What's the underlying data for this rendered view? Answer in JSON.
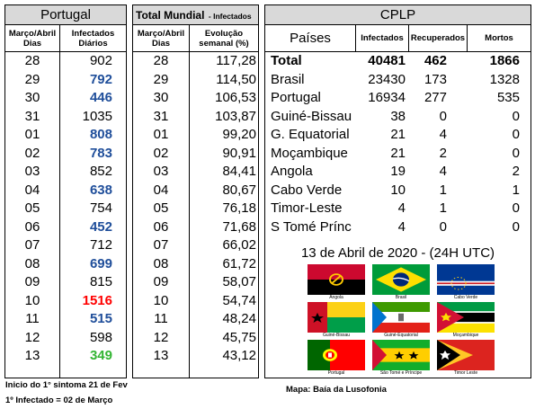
{
  "portugal": {
    "title": "Portugal",
    "col_date": "Março/Abril Dias",
    "col_value": "Infectados Diários",
    "rows": [
      {
        "day": "28",
        "value": "902",
        "style": "normal"
      },
      {
        "day": "29",
        "value": "792",
        "style": "blue"
      },
      {
        "day": "30",
        "value": "446",
        "style": "blue"
      },
      {
        "day": "31",
        "value": "1035",
        "style": "normal"
      },
      {
        "day": "01",
        "value": "808",
        "style": "blue"
      },
      {
        "day": "02",
        "value": "783",
        "style": "blue"
      },
      {
        "day": "03",
        "value": "852",
        "style": "normal"
      },
      {
        "day": "04",
        "value": "638",
        "style": "blue"
      },
      {
        "day": "05",
        "value": "754",
        "style": "normal"
      },
      {
        "day": "06",
        "value": "452",
        "style": "blue"
      },
      {
        "day": "07",
        "value": "712",
        "style": "normal"
      },
      {
        "day": "08",
        "value": "699",
        "style": "blue"
      },
      {
        "day": "09",
        "value": "815",
        "style": "normal"
      },
      {
        "day": "10",
        "value": "1516",
        "style": "red"
      },
      {
        "day": "11",
        "value": "515",
        "style": "blue"
      },
      {
        "day": "12",
        "value": "598",
        "style": "normal"
      },
      {
        "day": "13",
        "value": "349",
        "style": "green"
      }
    ],
    "notes": [
      "Inicio do 1° sintoma 21 de Fev",
      "1º Infectado = 02 de Março"
    ]
  },
  "mundial": {
    "title": "Total Mundial",
    "title_suffix": "- Infectados",
    "col_date": "Março/Abril Dias",
    "col_value": "Evolução semanal (%)",
    "rows": [
      {
        "day": "28",
        "value": "117,28"
      },
      {
        "day": "29",
        "value": "114,50"
      },
      {
        "day": "30",
        "value": "106,53"
      },
      {
        "day": "31",
        "value": "103,87"
      },
      {
        "day": "01",
        "value": "99,20"
      },
      {
        "day": "02",
        "value": "90,91"
      },
      {
        "day": "03",
        "value": "84,41"
      },
      {
        "day": "04",
        "value": "80,67"
      },
      {
        "day": "05",
        "value": "76,18"
      },
      {
        "day": "06",
        "value": "71,68"
      },
      {
        "day": "07",
        "value": "66,02"
      },
      {
        "day": "08",
        "value": "61,72"
      },
      {
        "day": "09",
        "value": "58,07"
      },
      {
        "day": "10",
        "value": "54,74"
      },
      {
        "day": "11",
        "value": "48,24"
      },
      {
        "day": "12",
        "value": "45,75"
      },
      {
        "day": "13",
        "value": "43,12"
      }
    ]
  },
  "cplp": {
    "title": "CPLP",
    "col_country": "Países",
    "col_infected": "Infectados",
    "col_recovered": "Recuperados",
    "col_deaths": "Mortos",
    "rows": [
      {
        "country": "Total",
        "infected": "40481",
        "recovered": "462",
        "deaths": "1866",
        "bold": true
      },
      {
        "country": "Brasil",
        "infected": "23430",
        "recovered": "173",
        "deaths": "1328",
        "bold": false
      },
      {
        "country": "Portugal",
        "infected": "16934",
        "recovered": "277",
        "deaths": "535",
        "bold": false
      },
      {
        "country": "Guiné-Bissau",
        "infected": "38",
        "recovered": "0",
        "deaths": "0",
        "bold": false
      },
      {
        "country": "G. Equatorial",
        "infected": "21",
        "recovered": "4",
        "deaths": "0",
        "bold": false
      },
      {
        "country": "Moçambique",
        "infected": "21",
        "recovered": "2",
        "deaths": "0",
        "bold": false
      },
      {
        "country": "Angola",
        "infected": "19",
        "recovered": "4",
        "deaths": "2",
        "bold": false
      },
      {
        "country": "Cabo Verde",
        "infected": "10",
        "recovered": "1",
        "deaths": "1",
        "bold": false
      },
      {
        "country": "Timor-Leste",
        "infected": "4",
        "recovered": "1",
        "deaths": "0",
        "bold": false
      },
      {
        "country": "S Tomé Prínc",
        "infected": "4",
        "recovered": "0",
        "deaths": "0",
        "bold": false
      }
    ],
    "date_line": "13 de Abril de 2020 - (24H UTC)",
    "map_caption": "Mapa: Baía da Lusofonia",
    "flags": [
      "Angola",
      "Brasil",
      "Cabo Verde",
      "Guiné-Bissau",
      "Guiné-Equatorial",
      "Moçambique",
      "Portugal",
      "São Tomé e Príncipe",
      "Timor Leste"
    ]
  },
  "colors": {
    "header_bg": "#d9d9d9",
    "blue": "#1f4e9a",
    "red": "#ff0000",
    "green": "#33b533"
  }
}
